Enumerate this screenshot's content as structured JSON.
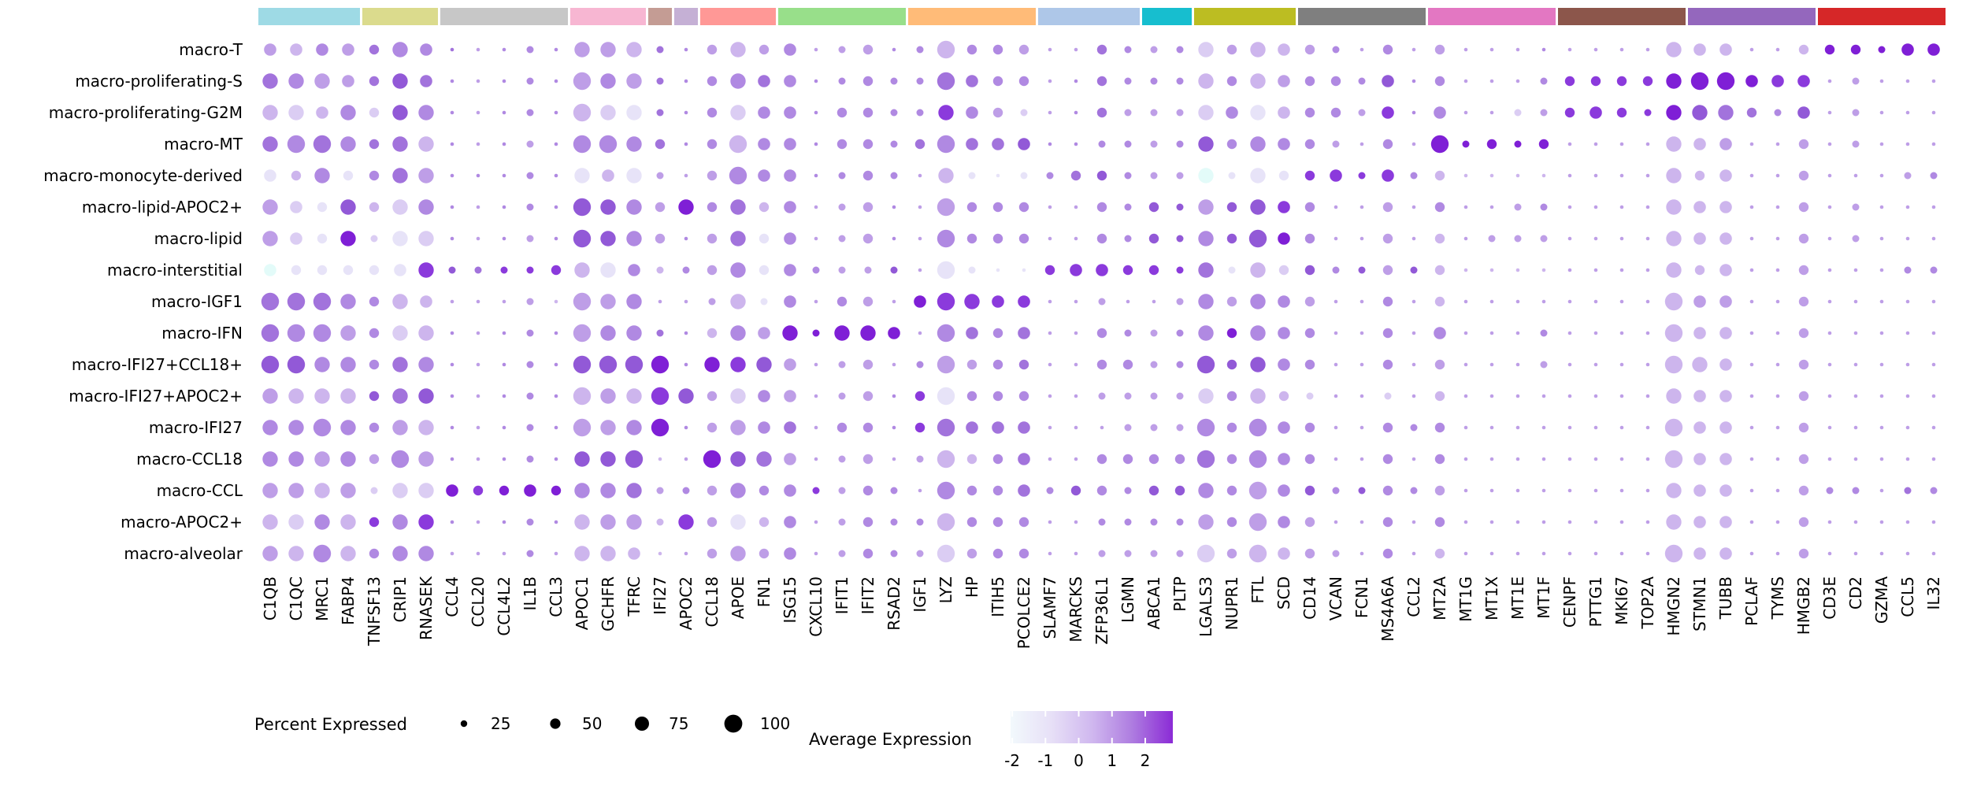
{
  "figure": {
    "background": "#ffffff",
    "plot_type_note": "single-cell dot plot of macrophage subsets vs marker genes"
  },
  "legend": {
    "percent_label": "Percent Expressed",
    "percent_items": [
      {
        "value": "25",
        "r": 4.2
      },
      {
        "value": "50",
        "r": 6.6
      },
      {
        "value": "75",
        "r": 9.0
      },
      {
        "value": "100",
        "r": 11.4
      }
    ],
    "percent_dot_color": "#000000",
    "avg_label": "Average Expression",
    "avg_ticks": [
      "-2",
      "-1",
      "0",
      "1",
      "2"
    ],
    "gradient": [
      "#F2F9FC",
      "#E7E0F7",
      "#D0B8EF",
      "#AE7CE0",
      "#8B2BD6"
    ]
  },
  "chart_data": {
    "type": "dotplot",
    "title": "",
    "xlabel": "",
    "ylabel": "",
    "legend_position": "bottom",
    "size_meaning": "Percent Expressed",
    "color_meaning": "Average Expression",
    "color_range": [
      -2,
      2
    ],
    "rows": [
      "macro-T",
      "macro-proliferating-S",
      "macro-proliferating-G2M",
      "macro-MT",
      "macro-monocyte-derived",
      "macro-lipid-APOC2+",
      "macro-lipid",
      "macro-interstitial",
      "macro-IGF1",
      "macro-IFN",
      "macro-IFI27+CCL18+",
      "macro-IFI27+APOC2+",
      "macro-IFI27",
      "macro-CCL18",
      "macro-CCL",
      "macro-APOC2+",
      "macro-alveolar"
    ],
    "columns": [
      "C1QB",
      "C1QC",
      "MRC1",
      "FABP4",
      "TNFSF13",
      "CRIP1",
      "RNASEK",
      "CCL4",
      "CCL20",
      "CCL4L2",
      "IL1B",
      "CCL3",
      "APOC1",
      "GCHFR",
      "TFRC",
      "IFI27",
      "APOC2",
      "CCL18",
      "APOE",
      "FN1",
      "ISG15",
      "CXCL10",
      "IFIT1",
      "IFIT2",
      "RSAD2",
      "IGF1",
      "LYZ",
      "HP",
      "ITIH5",
      "PCOLCE2",
      "SLAMF7",
      "MARCKS",
      "ZFP36L1",
      "LGMN",
      "ABCA1",
      "PLTP",
      "LGALS3",
      "NUPR1",
      "FTL",
      "SCD",
      "CD14",
      "VCAN",
      "FCN1",
      "MS4A6A",
      "CCL2",
      "MT2A",
      "MT1G",
      "MT1X",
      "MT1E",
      "MT1F",
      "CENPF",
      "PTTG1",
      "MKI67",
      "TOP2A",
      "HMGN2",
      "STMN1",
      "TUBB",
      "PCLAF",
      "TYMS",
      "HMGB2",
      "CD3E",
      "CD2",
      "GZMA",
      "CCL5",
      "IL32"
    ],
    "groups": [
      {
        "start": 1,
        "end": 4,
        "color": "#9edae5"
      },
      {
        "start": 5,
        "end": 7,
        "color": "#dbdb8d"
      },
      {
        "start": 8,
        "end": 12,
        "color": "#c7c7c7"
      },
      {
        "start": 13,
        "end": 15,
        "color": "#f7b6d2"
      },
      {
        "start": 16,
        "end": 16,
        "color": "#c49c94"
      },
      {
        "start": 17,
        "end": 17,
        "color": "#c5b0d5"
      },
      {
        "start": 18,
        "end": 20,
        "color": "#ff9896"
      },
      {
        "start": 21,
        "end": 25,
        "color": "#98df8a"
      },
      {
        "start": 26,
        "end": 30,
        "color": "#ffbb78"
      },
      {
        "start": 31,
        "end": 34,
        "color": "#aec7e8"
      },
      {
        "start": 35,
        "end": 36,
        "color": "#17becf"
      },
      {
        "start": 37,
        "end": 40,
        "color": "#bcbd22"
      },
      {
        "start": 41,
        "end": 45,
        "color": "#7f7f7f"
      },
      {
        "start": 46,
        "end": 50,
        "color": "#e377c2"
      },
      {
        "start": 51,
        "end": 55,
        "color": "#8c564b"
      },
      {
        "start": 56,
        "end": 60,
        "color": "#9467bd"
      },
      {
        "start": 61,
        "end": 65,
        "color": "#d62728"
      }
    ],
    "size_percent": [
      8,
      25,
      40,
      60,
      80,
      95
    ],
    "size_radius": [
      2.3,
      4.5,
      6.2,
      7.8,
      9.7,
      11.2
    ],
    "color_values": [
      -2.0,
      -1.55,
      -1.1,
      -0.65,
      -0.2,
      0.25,
      0.7,
      1.15,
      1.6,
      2.0
    ],
    "color_palette": [
      "#E3FBF9",
      "#E7E3F8",
      "#DBCDF3",
      "#CDB5ED",
      "#BE9EE7",
      "#B089E2",
      "#A273DC",
      "#9259D7",
      "#8B3ADC",
      "#7F1FD6"
    ],
    "cell_encoding": "each pair = [size code 0-5][color code 0-9] per gene, row-major",
    "cells": [
      "34 33 35 34 26 45 35 06 04 05 15 05 44 44 43 16 05 24 43 24 35 04 14 24 05 15 53 25 25 24 04 04 26 15 14 15 42 24 43 33 24 15 04 25 04 24 04 04 04 05 04 04 04 04 43 33 33 04 04 23 29 29 19 39 39",
      "46 45 44 34 26 47 36 05 04 05 15 05 54 45 44 16 05 25 45 36 35 05 15 25 15 15 56 36 25 25 04 05 26 15 15 15 43 25 43 34 25 25 15 37 05 25 04 04 04 15 28 28 28 28 49 59 59 39 38 38 04 14 04 04 04",
      "43 42 33 45 22 47 45 05 04 05 15 05 53 42 41 16 05 25 42 35 35 05 25 25 15 15 48 35 24 12 04 05 26 14 14 14 42 35 41 33 25 25 14 38 05 35 04 04 12 14 28 38 28 18 49 47 46 26 15 37 04 14 04 04 04",
      "46 55 56 45 26 46 43 05 04 05 14 05 55 55 45 26 05 25 53 35 35 05 25 25 15 26 55 36 36 37 05 05 15 15 14 15 47 25 45 35 25 14 04 25 04 59 19 29 19 29 04 04 04 04 43 33 34 04 04 24 04 14 04 04 04",
      "31 23 45 21 25 46 44 05 05 05 15 05 41 33 41 14 04 24 55 35 35 05 15 25 15 04 43 11 01 11 15 26 27 15 14 14 40 11 41 21 28 38 18 38 15 23 03 03 03 03 04 04 04 04 43 23 33 04 04 24 04 04 04 14 15",
      "44 32 21 47 23 42 45 05 04 05 15 05 57 47 45 24 49 25 46 23 35 04 14 24 05 04 54 25 25 25 04 04 25 15 27 17 44 27 47 38 25 04 04 24 04 25 04 04 14 15 04 04 04 04 43 33 33 04 04 24 04 14 04 04 04",
      "44 32 21 49 12 41 42 05 04 05 14 05 57 47 45 24 05 24 46 21 35 04 14 24 05 04 55 25 25 25 04 04 25 15 27 17 45 27 57 39 25 04 04 24 04 23 04 14 14 14 04 04 04 04 43 33 33 04 04 24 04 14 04 04 04",
      "30 21 21 21 21 31 48 17 16 18 18 28 43 41 35 13 15 24 45 21 35 15 14 14 17 04 51 11 01 01 28 38 38 28 28 18 46 11 43 22 27 15 17 24 17 23 03 03 03 03 04 04 04 04 43 23 33 04 04 24 04 04 04 15 15",
      "56 56 56 45 25 43 33 04 04 04 14 03 54 44 45 04 04 14 43 11 35 04 25 24 04 39 58 48 38 38 04 04 14 04 04 14 45 24 45 35 24 04 04 25 04 23 04 04 04 04 04 04 04 04 53 34 34 04 04 24 04 04 04 04 04",
      "56 55 55 44 25 42 43 05 04 05 15 05 54 45 45 16 05 23 45 34 49 19 49 49 39 04 55 36 25 36 04 04 25 15 14 15 45 29 45 35 25 04 04 25 04 35 04 04 04 15 04 04 04 04 53 33 33 04 04 24 04 04 04 04 04",
      "57 57 45 45 25 46 45 05 04 05 15 05 57 57 57 59 05 49 48 47 34 04 14 24 04 15 54 24 25 26 04 04 25 25 14 15 57 27 47 35 25 04 04 25 04 24 04 04 04 14 04 04 04 04 53 43 33 04 04 24 04 04 04 04 04",
      "44 43 43 43 27 46 47 05 04 05 15 05 53 44 43 58 47 24 42 35 34 04 14 24 05 28 51 25 25 25 04 04 14 14 14 14 42 25 43 23 12 04 04 12 04 23 04 04 04 04 04 04 04 04 43 33 33 04 04 24 04 04 04 04 04",
      "45 45 55 45 25 44 43 05 04 05 15 05 54 44 45 59 05 24 44 35 36 04 25 25 05 28 56 36 36 36 04 04 04 14 14 14 55 25 55 35 25 04 04 25 15 25 04 04 04 04 04 04 04 04 53 33 33 04 04 24 04 04 04 04 04",
      "45 45 44 45 24 55 44 05 04 05 15 05 47 47 57 03 04 59 47 46 34 04 14 24 04 14 53 23 25 36 04 04 25 25 25 25 56 25 55 35 25 04 04 25 04 25 04 04 04 04 04 04 04 04 53 33 33 04 04 24 04 04 04 04 04",
      "44 44 43 44 12 42 42 39 28 29 39 29 45 45 46 14 15 24 45 25 35 18 14 25 15 04 55 25 25 36 15 27 25 15 27 27 45 25 54 35 27 15 17 25 15 24 04 04 04 04 04 04 04 04 43 33 33 04 04 24 15 15 04 16 15",
      "43 42 45 43 28 45 48 05 04 05 15 05 43 44 44 13 48 24 41 23 35 04 14 25 15 15 53 25 25 25 04 04 15 15 15 15 44 25 54 35 24 04 04 25 04 25 04 04 04 04 04 04 04 04 43 33 33 04 04 24 04 04 04 04 04",
      "44 43 55 43 25 45 45 04 04 04 15 04 43 43 33 03 04 24 44 24 35 04 14 25 15 14 52 24 25 25 04 04 14 14 14 14 52 24 53 33 24 14 04 25 04 23 04 04 04 04 04 04 04 04 53 33 33 04 04 24 04 04 04 04 04"
    ]
  }
}
